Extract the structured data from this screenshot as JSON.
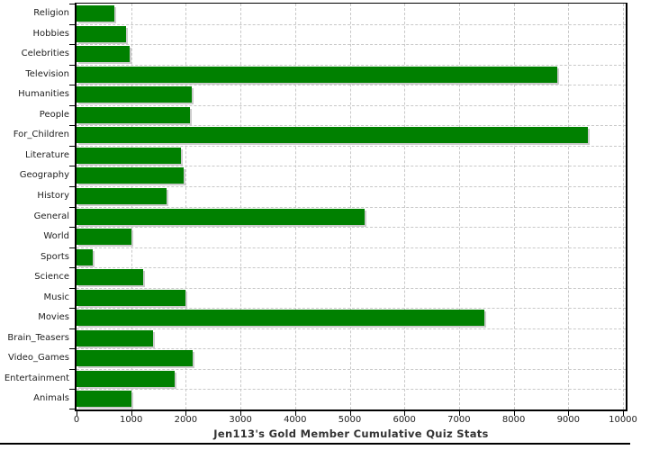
{
  "colors": {
    "bar": "#008000",
    "bar_shadow": "#cccccc",
    "grid": "#c8c8c8",
    "axis": "#000000",
    "label_text": "#222222",
    "title_text": "#333333"
  },
  "chart_data": {
    "type": "bar",
    "orientation": "horizontal",
    "title": "Jen113's Gold Member Cumulative Quiz Stats",
    "xlabel": "",
    "ylabel": "",
    "grid": true,
    "legend": false,
    "xlim": [
      0,
      10000
    ],
    "x_ticks": [
      0,
      1000,
      2000,
      3000,
      4000,
      5000,
      6000,
      7000,
      8000,
      9000,
      10000
    ],
    "x_tick_labels": [
      "0",
      "1000",
      "2000",
      "3000",
      "4000",
      "5000",
      "6000",
      "7000",
      "8000",
      "9000",
      "10000"
    ],
    "categories": [
      "Religion",
      "Hobbies",
      "Celebrities",
      "Television",
      "Humanities",
      "People",
      "For_Children",
      "Literature",
      "Geography",
      "History",
      "General",
      "World",
      "Sports",
      "Science",
      "Music",
      "Movies",
      "Brain_Teasers",
      "Video_Games",
      "Entertainment",
      "Animals"
    ],
    "values": [
      690,
      900,
      970,
      8790,
      2110,
      2070,
      9350,
      1910,
      1960,
      1650,
      5270,
      1000,
      300,
      1220,
      1990,
      7460,
      1400,
      2130,
      1800,
      1000
    ]
  }
}
